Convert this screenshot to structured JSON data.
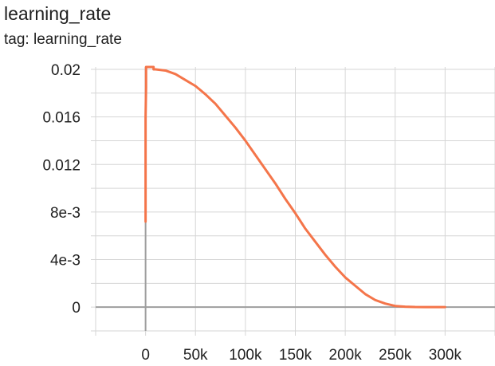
{
  "chart_data": {
    "type": "line",
    "title": "learning_rate",
    "tag_label": "tag: learning_rate",
    "xlabel": "",
    "ylabel": "",
    "xlim": [
      -50000,
      350000
    ],
    "ylim": [
      -0.002,
      0.0202
    ],
    "x_ticks": [
      0,
      50000,
      100000,
      150000,
      200000,
      250000,
      300000
    ],
    "x_tick_labels": [
      "0",
      "50k",
      "100k",
      "150k",
      "200k",
      "250k",
      "300k"
    ],
    "y_ticks": [
      0,
      0.004,
      0.008,
      0.012,
      0.016,
      0.02
    ],
    "y_tick_labels": [
      "0",
      "4e-3",
      "8e-3",
      "0.012",
      "0.016",
      "0.02"
    ],
    "grid": true,
    "line_color": "#f4754a",
    "axis_color": "#9e9e9e",
    "grid_color": "#d6d6d6",
    "series": [
      {
        "name": "learning_rate",
        "x": [
          0,
          0,
          500,
          500,
          8000,
          8000,
          10000,
          20000,
          30000,
          40000,
          50000,
          60000,
          70000,
          80000,
          90000,
          100000,
          110000,
          120000,
          130000,
          140000,
          150000,
          160000,
          170000,
          180000,
          190000,
          200000,
          210000,
          220000,
          230000,
          240000,
          250000,
          260000,
          270000,
          280000,
          290000,
          295000,
          300000
        ],
        "values": [
          0.0072,
          0.016,
          0.0185,
          0.0202,
          0.0202,
          0.02,
          0.02,
          0.0199,
          0.0196,
          0.0191,
          0.0186,
          0.0179,
          0.0171,
          0.0161,
          0.0151,
          0.014,
          0.0128,
          0.0116,
          0.0104,
          0.0091,
          0.0079,
          0.0066,
          0.0055,
          0.0044,
          0.0034,
          0.0025,
          0.0018,
          0.0011,
          0.0006,
          0.0003,
          0.0001,
          4e-05,
          1e-05,
          2e-06,
          0.0,
          0.0,
          0.0
        ]
      }
    ]
  }
}
